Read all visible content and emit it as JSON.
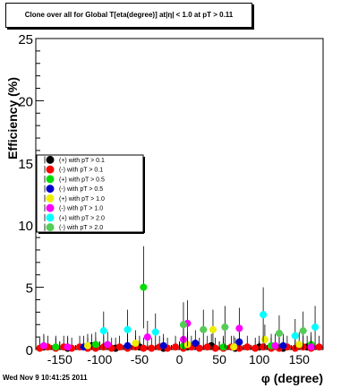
{
  "chart_data": {
    "type": "scatter",
    "title": "Clone  over all for Global T[eta(degree)] at|η| < 1.0 at pT > 0.11",
    "xlabel": "φ (degree)",
    "ylabel": "Efficiency (%)",
    "xlim": [
      -180,
      180
    ],
    "ylim": [
      0,
      25
    ],
    "x_ticks": [
      -150,
      -100,
      -50,
      0,
      50,
      100,
      150
    ],
    "y_ticks": [
      0,
      5,
      10,
      15,
      20,
      25
    ],
    "grid": false,
    "legend_position": "middle-left",
    "series": [
      {
        "name": "(+) with pT > 0.1",
        "color": "#000000",
        "x": [
          -170,
          -140,
          -110,
          -80,
          -50,
          -20,
          10,
          40,
          70,
          100,
          130,
          160
        ],
        "y": [
          0.2,
          0.1,
          0.3,
          0.1,
          0.2,
          0.1,
          0.2,
          0.3,
          0.1,
          0.2,
          0.1,
          0.2
        ]
      },
      {
        "name": "(-) with pT > 0.1",
        "color": "#ff0000",
        "x": [
          -175,
          -165,
          -155,
          -145,
          -135,
          -125,
          -115,
          -105,
          -95,
          -85,
          -75,
          -65,
          -55,
          -45,
          -35,
          -25,
          -15,
          -5,
          5,
          15,
          25,
          35,
          45,
          55,
          65,
          75,
          85,
          95,
          105,
          115,
          125,
          135,
          145,
          155,
          165,
          175
        ],
        "y": [
          0.1,
          0.2,
          0.1,
          0.2,
          0.1,
          0.2,
          0.1,
          0.1,
          0.2,
          0.1,
          0.2,
          0.1,
          0.2,
          0.1,
          0.1,
          0.2,
          0.1,
          0.2,
          0.1,
          0.2,
          0.1,
          0.2,
          0.1,
          0.1,
          0.2,
          0.1,
          0.2,
          0.1,
          0.2,
          0.1,
          0.1,
          0.2,
          0.1,
          0.2,
          0.1,
          0.2
        ]
      },
      {
        "name": "(+) with pT > 0.5",
        "color": "#00dd00",
        "x": [
          -155,
          -105,
          -45,
          5,
          55,
          115,
          165
        ],
        "y": [
          0.2,
          0.4,
          5.0,
          0.3,
          0.2,
          0.3,
          0.4
        ]
      },
      {
        "name": "(-) with pT > 0.5",
        "color": "#0000cc",
        "x": [
          -120,
          -65,
          -20,
          20,
          75,
          130
        ],
        "y": [
          0.2,
          0.3,
          0.3,
          0.5,
          0.6,
          0.3
        ]
      },
      {
        "name": "(+) with pT > 1.0",
        "color": "#eeee00",
        "x": [
          -115,
          -55,
          10,
          42,
          68,
          107,
          150
        ],
        "y": [
          0.3,
          0.5,
          0.4,
          1.6,
          0.2,
          0.8,
          0.4
        ]
      },
      {
        "name": "(-) with pT > 1.0",
        "color": "#ff00ff",
        "x": [
          -170,
          -140,
          -90,
          -40,
          5,
          10,
          75,
          120,
          165
        ],
        "y": [
          0.3,
          0.2,
          0.4,
          1.0,
          0.8,
          2.1,
          1.7,
          0.3,
          0.2
        ]
      },
      {
        "name": "(+) with pT > 2.0",
        "color": "#00ffff",
        "x": [
          -95,
          -65,
          -30,
          105,
          145,
          170
        ],
        "y": [
          1.5,
          1.6,
          1.4,
          2.8,
          1.1,
          1.8
        ]
      },
      {
        "name": "(-) with pT > 2.0",
        "color": "#55cc55",
        "x": [
          5,
          30,
          57,
          125,
          155
        ],
        "y": [
          2.0,
          1.6,
          1.8,
          1.3,
          1.5
        ]
      }
    ]
  },
  "footer": "Wed Nov  9 10:41:25 2011"
}
